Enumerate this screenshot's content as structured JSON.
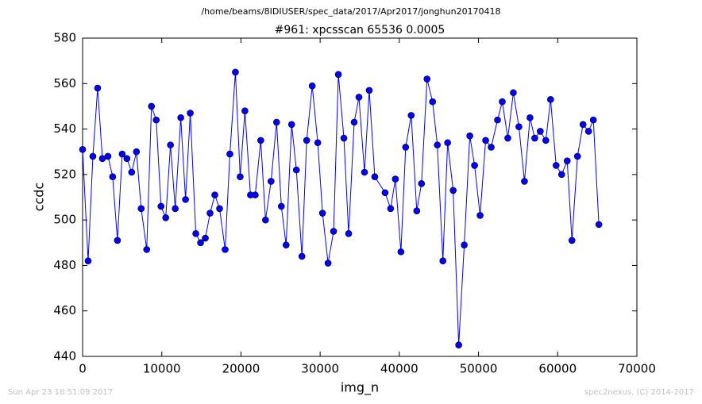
{
  "chart_data": {
    "type": "line",
    "suptitle": "/home/beams/8IDIUSER/spec_data/2017/Apr2017/jonghun20170418",
    "title": "#961: xpcsscan 65536 0.0005",
    "x_label": "img_n",
    "y_label": "ccdc",
    "footer_left": "Sun Apr 23 18:51:09 2017",
    "footer_right": "spec2nexus, (C) 2014-2017",
    "color": "#0000ff",
    "marker": "circle",
    "x": [
      0,
      700,
      1300,
      1900,
      2500,
      3200,
      3800,
      4400,
      5000,
      5600,
      6200,
      6800,
      7400,
      8100,
      8700,
      9300,
      9900,
      10500,
      11100,
      11700,
      12400,
      13000,
      13600,
      14300,
      14900,
      15500,
      16100,
      16700,
      17300,
      18000,
      18600,
      19300,
      19900,
      20500,
      21200,
      21800,
      22500,
      23100,
      23800,
      24500,
      25100,
      25700,
      26400,
      27000,
      27700,
      28300,
      29000,
      29700,
      30300,
      31000,
      31700,
      32300,
      33000,
      33600,
      34300,
      34900,
      35600,
      36200,
      36900,
      38200,
      38900,
      39500,
      40200,
      40800,
      41500,
      42200,
      42800,
      43500,
      44200,
      44800,
      45500,
      46100,
      46800,
      47500,
      48200,
      48900,
      49500,
      50200,
      50900,
      51600,
      52400,
      53000,
      53700,
      54400,
      55100,
      55800,
      56500,
      57100,
      57800,
      58500,
      59100,
      59800,
      60500,
      61200,
      61800,
      62500,
      63200,
      63900,
      64500,
      65200
    ],
    "values": [
      531,
      482,
      528,
      558,
      527,
      528,
      519,
      491,
      529,
      527,
      521,
      530,
      505,
      487,
      550,
      544,
      506,
      501,
      533,
      505,
      545,
      509,
      547,
      494,
      490,
      492,
      503,
      511,
      505,
      487,
      529,
      565,
      519,
      548,
      511,
      511,
      535,
      500,
      517,
      543,
      506,
      489,
      542,
      522,
      484,
      535,
      559,
      534,
      503,
      481,
      495,
      564,
      536,
      494,
      543,
      554,
      521,
      557,
      519,
      512,
      505,
      518,
      486,
      532,
      546,
      504,
      516,
      562,
      552,
      533,
      482,
      534,
      513,
      445,
      489,
      537,
      524,
      502,
      535,
      532,
      544,
      552,
      536,
      556,
      541,
      517,
      545,
      536,
      539,
      535,
      553,
      524,
      520,
      526,
      491,
      528,
      542,
      539,
      544,
      498
    ],
    "xlim": [
      0,
      70000
    ],
    "xticks": [
      0,
      10000,
      20000,
      30000,
      40000,
      50000,
      60000,
      70000
    ],
    "ylim": [
      440,
      580
    ],
    "yticks": [
      440,
      460,
      480,
      500,
      520,
      540,
      560,
      580
    ]
  }
}
